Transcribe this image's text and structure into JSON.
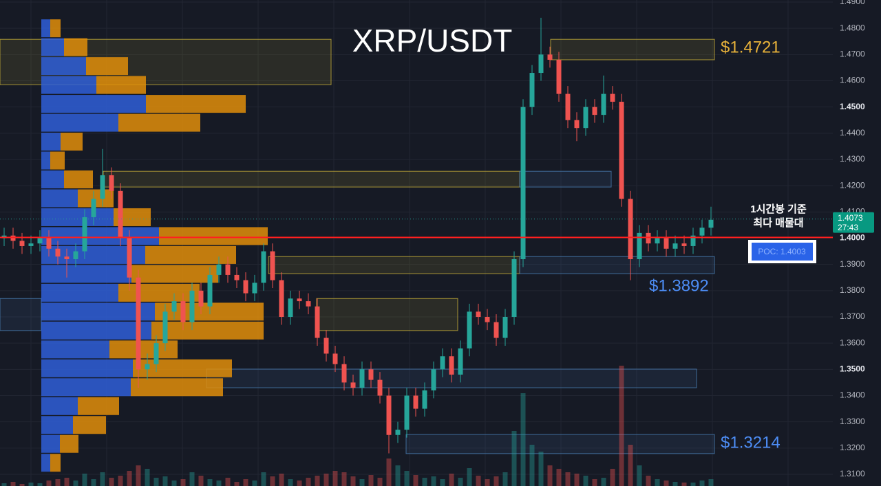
{
  "chart_data": {
    "type": "candlestick",
    "title": "XRP/USDT",
    "up_color": "#26a69a",
    "down_color": "#ef5350",
    "open": [
      1.4,
      1.401,
      1.399,
      1.397,
      1.398,
      1.4,
      1.396,
      1.393,
      1.392,
      1.395,
      1.408,
      1.415,
      1.424,
      1.418,
      1.4,
      1.385,
      1.35,
      1.352,
      1.36,
      1.372,
      1.376,
      1.368,
      1.38,
      1.374,
      1.386,
      1.39,
      1.386,
      1.384,
      1.379,
      1.383,
      1.395,
      1.384,
      1.37,
      1.377,
      1.376,
      1.374,
      1.362,
      1.356,
      1.352,
      1.345,
      1.343,
      1.35,
      1.346,
      1.34,
      1.325,
      1.327,
      1.34,
      1.335,
      1.342,
      1.35,
      1.355,
      1.348,
      1.358,
      1.372,
      1.37,
      1.368,
      1.362,
      1.37,
      1.392,
      1.45,
      1.463,
      1.47,
      1.468,
      1.455,
      1.445,
      1.442,
      1.45,
      1.447,
      1.455,
      1.452,
      1.415,
      1.392,
      1.402,
      1.398,
      1.4,
      1.396,
      1.398,
      1.397,
      1.401,
      1.404
    ],
    "high": [
      1.404,
      1.404,
      1.402,
      1.401,
      1.403,
      1.403,
      1.399,
      1.396,
      1.398,
      1.411,
      1.418,
      1.434,
      1.427,
      1.421,
      1.403,
      1.388,
      1.356,
      1.363,
      1.375,
      1.379,
      1.379,
      1.383,
      1.383,
      1.389,
      1.393,
      1.393,
      1.389,
      1.387,
      1.386,
      1.398,
      1.398,
      1.387,
      1.38,
      1.38,
      1.379,
      1.377,
      1.365,
      1.359,
      1.355,
      1.348,
      1.353,
      1.353,
      1.349,
      1.343,
      1.33,
      1.343,
      1.343,
      1.345,
      1.353,
      1.358,
      1.358,
      1.361,
      1.375,
      1.375,
      1.373,
      1.371,
      1.373,
      1.395,
      1.453,
      1.466,
      1.484,
      1.473,
      1.471,
      1.458,
      1.448,
      1.453,
      1.453,
      1.462,
      1.458,
      1.455,
      1.418,
      1.405,
      1.405,
      1.403,
      1.403,
      1.401,
      1.401,
      1.404,
      1.407,
      1.412
    ],
    "low": [
      1.397,
      1.396,
      1.394,
      1.394,
      1.395,
      1.393,
      1.39,
      1.385,
      1.389,
      1.392,
      1.405,
      1.412,
      1.415,
      1.397,
      1.38,
      1.343,
      1.346,
      1.349,
      1.357,
      1.369,
      1.365,
      1.365,
      1.371,
      1.371,
      1.383,
      1.383,
      1.381,
      1.376,
      1.376,
      1.38,
      1.381,
      1.367,
      1.367,
      1.373,
      1.371,
      1.359,
      1.353,
      1.349,
      1.342,
      1.34,
      1.34,
      1.343,
      1.337,
      1.318,
      1.322,
      1.324,
      1.332,
      1.332,
      1.339,
      1.347,
      1.345,
      1.345,
      1.355,
      1.367,
      1.365,
      1.359,
      1.359,
      1.367,
      1.389,
      1.447,
      1.46,
      1.465,
      1.452,
      1.442,
      1.437,
      1.439,
      1.444,
      1.444,
      1.449,
      1.412,
      1.384,
      1.389,
      1.395,
      1.395,
      1.393,
      1.393,
      1.394,
      1.394,
      1.398,
      1.401
    ],
    "close": [
      1.401,
      1.399,
      1.397,
      1.398,
      1.4,
      1.396,
      1.393,
      1.392,
      1.395,
      1.408,
      1.415,
      1.424,
      1.418,
      1.4,
      1.385,
      1.35,
      1.352,
      1.36,
      1.372,
      1.376,
      1.368,
      1.38,
      1.374,
      1.386,
      1.39,
      1.386,
      1.384,
      1.379,
      1.383,
      1.395,
      1.384,
      1.37,
      1.377,
      1.376,
      1.374,
      1.362,
      1.356,
      1.352,
      1.345,
      1.343,
      1.35,
      1.346,
      1.34,
      1.325,
      1.327,
      1.34,
      1.335,
      1.342,
      1.35,
      1.355,
      1.348,
      1.358,
      1.372,
      1.37,
      1.368,
      1.362,
      1.37,
      1.392,
      1.45,
      1.463,
      1.47,
      1.468,
      1.455,
      1.445,
      1.442,
      1.45,
      1.447,
      1.455,
      1.452,
      1.415,
      1.392,
      1.402,
      1.398,
      1.4,
      1.396,
      1.398,
      1.397,
      1.401,
      1.404,
      1.407
    ],
    "volume": [
      4,
      6,
      3,
      5,
      4,
      8,
      10,
      12,
      8,
      18,
      10,
      20,
      12,
      15,
      22,
      30,
      25,
      12,
      14,
      8,
      10,
      20,
      15,
      10,
      8,
      12,
      6,
      10,
      8,
      20,
      14,
      18,
      10,
      8,
      12,
      15,
      18,
      22,
      20,
      14,
      10,
      16,
      12,
      40,
      30,
      22,
      16,
      12,
      14,
      10,
      18,
      12,
      26,
      15,
      10,
      14,
      20,
      80,
      135,
      60,
      50,
      30,
      25,
      20,
      18,
      15,
      10,
      12,
      25,
      175,
      60,
      30,
      15,
      10,
      8,
      6,
      5,
      5,
      8,
      10
    ],
    "volume_profile": {
      "prices": [
        1.48,
        1.4728,
        1.4656,
        1.4584,
        1.4512,
        1.444,
        1.4368,
        1.4296,
        1.4224,
        1.4152,
        1.408,
        1.4008,
        1.3936,
        1.3864,
        1.3792,
        1.372,
        1.3648,
        1.3576,
        1.3504,
        1.3432,
        1.336,
        1.3288,
        1.3216,
        1.3144
      ],
      "buy": [
        13,
        33,
        65,
        80,
        152,
        112,
        28,
        13,
        33,
        53,
        105,
        171,
        151,
        131,
        112,
        165,
        160,
        99,
        133,
        130,
        53,
        46,
        27,
        13
      ],
      "sell": [
        15,
        34,
        61,
        72,
        145,
        119,
        32,
        21,
        42,
        52,
        54,
        158,
        132,
        126,
        118,
        158,
        163,
        99,
        144,
        134,
        60,
        48,
        27,
        15
      ],
      "buy_color": "#2f5fd8",
      "sell_color": "#e08e0b"
    },
    "zones": [
      {
        "low": 1.468,
        "high": 1.4758,
        "color": "#c9b13a"
      },
      {
        "low": 1.4585,
        "high": 1.4758,
        "color": "#c9b13a"
      },
      {
        "low": 1.4195,
        "high": 1.4255,
        "color": "#c9b13a"
      },
      {
        "low": 1.4195,
        "high": 1.4255,
        "color": "#4a7fb5"
      },
      {
        "low": 1.3865,
        "high": 1.393,
        "color": "#c9b13a"
      },
      {
        "low": 1.3865,
        "high": 1.393,
        "color": "#4a7fb5"
      },
      {
        "low": 1.3648,
        "high": 1.377,
        "color": "#c9b13a"
      },
      {
        "low": 1.3648,
        "high": 1.377,
        "color": "#4a7fb5"
      },
      {
        "low": 1.343,
        "high": 1.3501,
        "color": "#4a7fb5"
      },
      {
        "low": 1.3179,
        "high": 1.3252,
        "color": "#4a7fb5"
      }
    ],
    "price_labels": [
      "$1.4721",
      "$1.3892",
      "$1.3214"
    ],
    "note": [
      "1시간봉 기준",
      "최다 매물대"
    ],
    "poc": 1.4003,
    "poc_label": "POC: 1.4003",
    "last_price": {
      "value": 1.4073,
      "label": "1.4073"
    },
    "countdown": "27:43",
    "ylim": [
      1.31,
      1.49
    ],
    "yticks": [
      {
        "value": 1.31,
        "label": "1.3100"
      },
      {
        "value": 1.32,
        "label": "1.3200"
      },
      {
        "value": 1.33,
        "label": "1.3300"
      },
      {
        "value": 1.34,
        "label": "1.3400"
      },
      {
        "value": 1.35,
        "label": "1.3500"
      },
      {
        "value": 1.36,
        "label": "1.3600"
      },
      {
        "value": 1.37,
        "label": "1.3700"
      },
      {
        "value": 1.38,
        "label": "1.3800"
      },
      {
        "value": 1.39,
        "label": "1.3900"
      },
      {
        "value": 1.4,
        "label": "1.4000"
      },
      {
        "value": 1.41,
        "label": "1.4100"
      },
      {
        "value": 1.42,
        "label": "1.4200"
      },
      {
        "value": 1.43,
        "label": "1.4300"
      },
      {
        "value": 1.44,
        "label": "1.4400"
      },
      {
        "value": 1.45,
        "label": "1.4500"
      },
      {
        "value": 1.46,
        "label": "1.4600"
      },
      {
        "value": 1.47,
        "label": "1.4700"
      },
      {
        "value": 1.48,
        "label": "1.4800"
      },
      {
        "value": 1.49,
        "label": "1.4900"
      }
    ],
    "grid": true
  }
}
